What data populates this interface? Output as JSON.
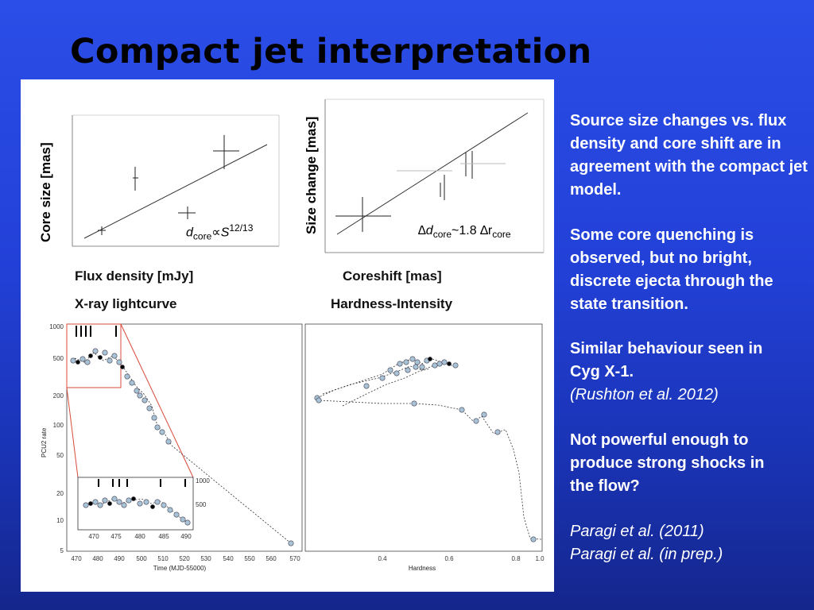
{
  "slide": {
    "title": "Compact jet interpretation"
  },
  "figure": {
    "core_size_label": "Core size [mas]",
    "size_change_label": "Size change [mas]",
    "formula_left": {
      "d": "d",
      "sub": "core",
      "prop": "∝",
      "S": "S",
      "sup": "12/13"
    },
    "formula_right": {
      "delta_d": "∆d",
      "sub1": "core",
      "approx": "~1.8 ∆r",
      "sub2": "core"
    },
    "caption_flux": "Flux density [mJy]",
    "caption_coreshift": "Coreshift [mas]",
    "caption_xray": "X-ray lightcurve",
    "caption_hardness": "Hardness-Intensity",
    "lightcurve_ylabel": "PCU2 rate",
    "lightcurve_xlabel": "Time (MJD-55000)",
    "lightcurve_xticks": [
      "470",
      "480",
      "490",
      "500",
      "510",
      "520",
      "530",
      "540",
      "550",
      "560",
      "570"
    ],
    "lightcurve_yticks": [
      "1000",
      "500",
      "200",
      "100",
      "50",
      "20",
      "10",
      "5"
    ],
    "inset_xticks": [
      "470",
      "475",
      "480",
      "485",
      "490"
    ],
    "inset_yticks": [
      "1000",
      "500"
    ],
    "hardness_xlabel": "Hardness",
    "hardness_xticks": [
      "0.4",
      "0.6",
      "0.8",
      "1.0"
    ]
  },
  "notes": {
    "n1": "Source size changes vs. flux density and core shift are in agreement with the compact jet model.",
    "n2": "Some core quenching is observed, but no bright, discrete ejecta through the state transition.",
    "n3": "Similar behaviour seen in Cyg X-1.",
    "n3_ref": "(Rushton et al. 2012)",
    "n4": "Not powerful enough to produce strong shocks in the flow?",
    "ref1": "Paragi et al. (2011)",
    "ref2": "Paragi et al. (in prep.)"
  },
  "colors": {
    "accent_red": "#d84a3a",
    "point_fill": "#a9c3d6"
  }
}
